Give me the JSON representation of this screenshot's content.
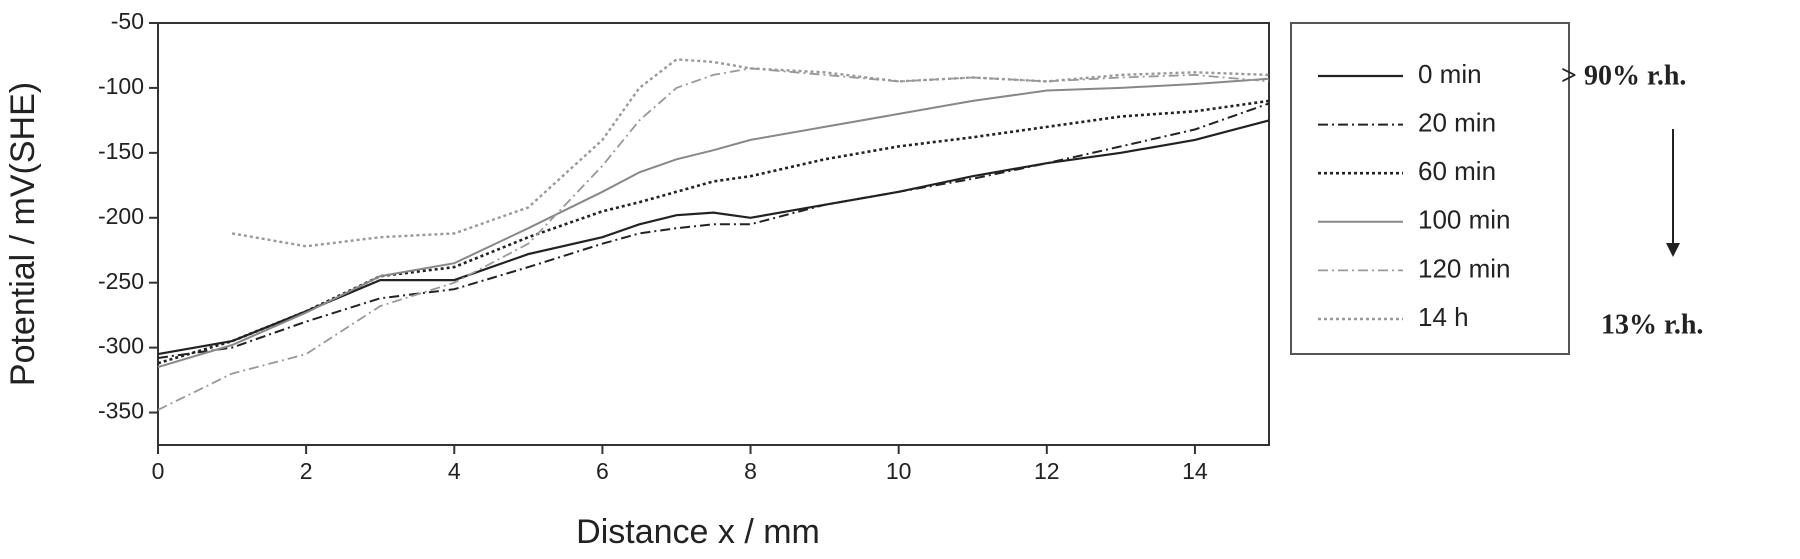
{
  "chart_data": {
    "type": "line",
    "x_label": "Distance x / mm",
    "y_label": "Potential / mV(SHE)",
    "x": [
      0,
      1,
      2,
      3,
      4,
      5,
      6,
      6.5,
      7,
      7.5,
      8,
      9,
      10,
      11,
      12,
      13,
      14,
      15
    ],
    "xlim": [
      0,
      15
    ],
    "xticks": [
      0,
      2,
      4,
      6,
      8,
      10,
      12,
      14
    ],
    "ylim": [
      -375,
      -50
    ],
    "yticks": [
      -50,
      -100,
      -150,
      -200,
      -250,
      -300,
      -350
    ],
    "legend": "right",
    "series": [
      {
        "name": "0 min",
        "color": "#222222",
        "dash": "none",
        "width": 2.2,
        "values": [
          -305,
          -295,
          -272,
          -248,
          -248,
          -228,
          -215,
          -205,
          -198,
          -196,
          -200,
          -190,
          -180,
          -168,
          -158,
          -150,
          -140,
          -125
        ]
      },
      {
        "name": "20 min",
        "color": "#222222",
        "dash": "10 4 2 4",
        "width": 2,
        "values": [
          -308,
          -300,
          -280,
          -262,
          -255,
          -238,
          -220,
          -212,
          -208,
          -205,
          -205,
          -190,
          -180,
          -170,
          -158,
          -145,
          -132,
          -112
        ]
      },
      {
        "name": "60 min",
        "color": "#222222",
        "dash": "3 3",
        "width": 2.6,
        "values": [
          -312,
          -295,
          -272,
          -245,
          -238,
          -215,
          -195,
          -188,
          -180,
          -172,
          -168,
          -155,
          -145,
          -138,
          -130,
          -122,
          -118,
          -110
        ]
      },
      {
        "name": "100 min",
        "color": "#888888",
        "dash": "none",
        "width": 2,
        "values": [
          -315,
          -298,
          -273,
          -245,
          -235,
          -208,
          -180,
          -165,
          -155,
          -148,
          -140,
          -130,
          -120,
          -110,
          -102,
          -100,
          -97,
          -93
        ]
      },
      {
        "name": "120 min",
        "color": "#999999",
        "dash": "10 4 2 4",
        "width": 1.8,
        "values": [
          -348,
          -320,
          -305,
          -268,
          -250,
          -220,
          -160,
          -125,
          -100,
          -90,
          -85,
          -90,
          -95,
          -92,
          -95,
          -92,
          -90,
          -95
        ]
      },
      {
        "name": "14 h",
        "color": "#999999",
        "dash": "3 3",
        "width": 2.4,
        "values": [
          null,
          -212,
          -222,
          -215,
          -212,
          -192,
          -140,
          -100,
          -78,
          -80,
          -85,
          -88,
          -95,
          -92,
          -95,
          -90,
          -88,
          -90
        ]
      }
    ],
    "annotations": [
      "> 90% r.h.",
      "13% r.h."
    ]
  }
}
